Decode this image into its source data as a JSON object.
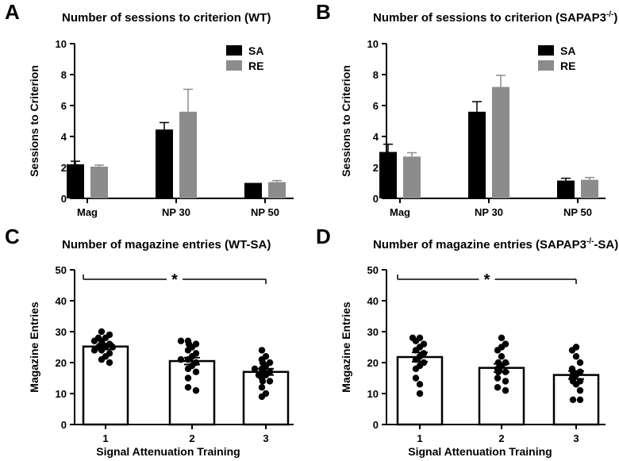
{
  "colors": {
    "sa": "#000000",
    "re": "#8c8c8c",
    "axis": "#000000",
    "dot": "#000000",
    "bar_fill": "#ffffff"
  },
  "chart_data": [
    {
      "panel": "A",
      "type": "bar",
      "title": "Number of sessions to criterion (WT)",
      "ylabel": "Sessions to Criterion",
      "xlabel": "",
      "ylim": [
        0,
        10
      ],
      "yticks": [
        0,
        2,
        4,
        6,
        8,
        10
      ],
      "categories": [
        "Mag",
        "NP 30",
        "NP 50"
      ],
      "legend": "top-right",
      "series": [
        {
          "name": "SA",
          "values": [
            2.2,
            4.45,
            1.0
          ],
          "errors": [
            0.2,
            0.45,
            0.0
          ]
        },
        {
          "name": "RE",
          "values": [
            2.05,
            5.6,
            1.05
          ],
          "errors": [
            0.1,
            1.45,
            0.1
          ]
        }
      ]
    },
    {
      "panel": "B",
      "type": "bar",
      "title": "Number of sessions to criterion (SAPAP3",
      "title_sup": "-/-",
      "title_end": ")",
      "ylabel": "Sessions to Criterion",
      "xlabel": "",
      "ylim": [
        0,
        10
      ],
      "yticks": [
        0,
        2,
        4,
        6,
        8,
        10
      ],
      "categories": [
        "Mag",
        "NP 30",
        "NP 50"
      ],
      "legend": "top-right",
      "series": [
        {
          "name": "SA",
          "values": [
            3.0,
            5.6,
            1.15
          ],
          "errors": [
            0.5,
            0.65,
            0.15
          ]
        },
        {
          "name": "RE",
          "values": [
            2.7,
            7.2,
            1.2
          ],
          "errors": [
            0.25,
            0.75,
            0.15
          ]
        }
      ]
    },
    {
      "panel": "C",
      "type": "bar",
      "title": "Number of magazine entries (WT-SA)",
      "ylabel": "Magazine Entries",
      "xlabel": "Signal Attenuation Training",
      "ylim": [
        0,
        50
      ],
      "yticks": [
        0,
        10,
        20,
        30,
        40,
        50
      ],
      "categories": [
        "1",
        "2",
        "3"
      ],
      "values": [
        25.2,
        20.5,
        17.0
      ],
      "errors": [
        0.9,
        1.1,
        1.0
      ],
      "points": [
        [
          30,
          29,
          28,
          28,
          27,
          27,
          26,
          26,
          25,
          25,
          25,
          24,
          24,
          23,
          22,
          21,
          20
        ],
        [
          27,
          27,
          26,
          26,
          25,
          24,
          23,
          22,
          21,
          21,
          20,
          19,
          18,
          17,
          15,
          12,
          11
        ],
        [
          24,
          22,
          21,
          20,
          20,
          19,
          18,
          18,
          17,
          17,
          16,
          16,
          15,
          14,
          14,
          12,
          10,
          9
        ]
      ],
      "significance": "*"
    },
    {
      "panel": "D",
      "type": "bar",
      "title": "Number of magazine entries (SAPAP3",
      "title_sup": "-/-",
      "title_end": "-SA)",
      "ylabel": "Magazine Entries",
      "xlabel": "Signal Attenuation Training",
      "ylim": [
        0,
        50
      ],
      "yticks": [
        0,
        10,
        20,
        30,
        40,
        50
      ],
      "categories": [
        "1",
        "2",
        "3"
      ],
      "values": [
        21.8,
        18.3,
        16.0
      ],
      "errors": [
        1.5,
        1.3,
        1.3
      ],
      "points": [
        [
          28,
          28,
          27,
          26,
          25,
          24,
          23,
          22,
          21,
          20,
          19,
          18,
          15,
          13,
          10
        ],
        [
          28,
          26,
          25,
          24,
          22,
          20,
          20,
          19,
          18,
          17,
          17,
          15,
          14,
          12,
          11
        ],
        [
          25,
          24,
          22,
          20,
          18,
          17,
          17,
          16,
          15,
          14,
          14,
          13,
          11,
          8,
          8
        ]
      ],
      "significance": "*"
    }
  ]
}
